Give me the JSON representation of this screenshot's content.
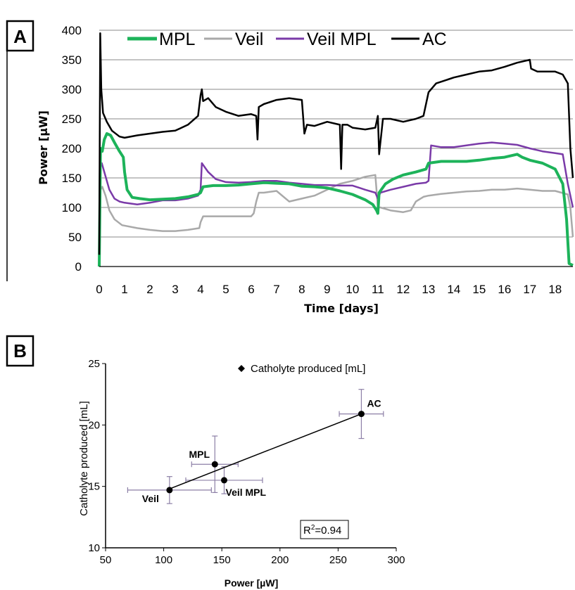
{
  "chart_data": [
    {
      "panel": "A",
      "type": "line",
      "xlabel": "Time [days]",
      "ylabel": "Power [µW]",
      "xlim": [
        0,
        18.7
      ],
      "ylim": [
        0,
        400
      ],
      "x_ticks": [
        "0",
        "1",
        "2",
        "3",
        "4",
        "5",
        "6",
        "7",
        "8",
        "9",
        "10",
        "11",
        "12",
        "13",
        "14",
        "15",
        "16",
        "17",
        "18"
      ],
      "y_ticks": [
        "0",
        "50",
        "100",
        "150",
        "200",
        "250",
        "300",
        "350",
        "400"
      ],
      "grid": "horizontal",
      "legend_position": "top",
      "series": [
        {
          "name": "MPL",
          "color": "#1db35a",
          "x": [
            0,
            0.05,
            0.12,
            0.2,
            0.3,
            0.45,
            0.6,
            0.8,
            0.95,
            1.0,
            1.1,
            1.3,
            1.6,
            2.0,
            2.5,
            3.0,
            3.5,
            3.9,
            4.0,
            4.1,
            4.5,
            5.0,
            5.5,
            6.0,
            6.5,
            7.0,
            7.5,
            8.0,
            8.5,
            9.0,
            9.5,
            10.0,
            10.5,
            10.8,
            10.95,
            11.0,
            11.05,
            11.3,
            11.6,
            12.0,
            12.5,
            12.9,
            13.0,
            13.5,
            14.0,
            14.5,
            15.0,
            15.5,
            16.0,
            16.5,
            16.7,
            17.0,
            17.5,
            18.0,
            18.3,
            18.45,
            18.55,
            18.7
          ],
          "y": [
            0,
            200,
            195,
            215,
            225,
            222,
            210,
            195,
            185,
            160,
            130,
            117,
            115,
            113,
            114,
            115,
            118,
            122,
            125,
            135,
            137,
            137,
            138,
            140,
            142,
            141,
            140,
            136,
            135,
            133,
            128,
            122,
            113,
            105,
            95,
            90,
            125,
            140,
            148,
            155,
            160,
            165,
            175,
            178,
            178,
            178,
            180,
            183,
            185,
            190,
            185,
            180,
            175,
            165,
            140,
            80,
            5,
            2
          ]
        },
        {
          "name": "Veil",
          "color": "#a9a9a9",
          "x": [
            0,
            0.05,
            0.12,
            0.25,
            0.4,
            0.6,
            0.9,
            1.5,
            2.0,
            2.5,
            3.0,
            3.5,
            3.95,
            4.0,
            4.1,
            4.5,
            5.0,
            5.5,
            6.0,
            6.1,
            6.2,
            6.3,
            6.5,
            7.0,
            7.5,
            8.0,
            8.5,
            9.0,
            9.5,
            10.0,
            10.5,
            10.9,
            11.0,
            11.1,
            11.5,
            12.0,
            12.3,
            12.5,
            12.8,
            13.0,
            13.5,
            14.0,
            14.5,
            15.0,
            15.5,
            16.0,
            16.5,
            17.0,
            17.5,
            18.0,
            18.5,
            18.6,
            18.7
          ],
          "y": [
            0,
            130,
            135,
            120,
            95,
            80,
            70,
            65,
            62,
            60,
            60,
            62,
            65,
            75,
            85,
            85,
            85,
            85,
            85,
            90,
            110,
            125,
            125,
            128,
            110,
            115,
            120,
            130,
            140,
            145,
            152,
            155,
            100,
            100,
            95,
            92,
            95,
            110,
            118,
            120,
            123,
            125,
            127,
            128,
            130,
            130,
            132,
            130,
            128,
            128,
            122,
            100,
            50
          ]
        },
        {
          "name": "Veil MPL",
          "color": "#7a3aa8",
          "x": [
            0,
            0.05,
            0.1,
            0.2,
            0.4,
            0.6,
            0.8,
            1.0,
            1.5,
            2.0,
            2.5,
            3.0,
            3.5,
            3.9,
            4.0,
            4.05,
            4.3,
            4.6,
            5.0,
            5.5,
            6.0,
            6.5,
            7.0,
            7.5,
            8.0,
            8.5,
            9.0,
            9.5,
            10.0,
            10.5,
            10.9,
            11.0,
            11.1,
            11.5,
            12.0,
            12.5,
            12.9,
            13.0,
            13.1,
            13.5,
            14.0,
            14.5,
            15.0,
            15.5,
            16.0,
            16.5,
            17.0,
            17.5,
            18.0,
            18.3,
            18.5,
            18.7
          ],
          "y": [
            0,
            170,
            175,
            160,
            130,
            115,
            110,
            108,
            105,
            108,
            112,
            112,
            115,
            120,
            130,
            175,
            160,
            148,
            143,
            142,
            143,
            145,
            145,
            142,
            140,
            138,
            138,
            137,
            137,
            130,
            125,
            115,
            125,
            130,
            135,
            140,
            142,
            145,
            205,
            202,
            202,
            205,
            208,
            210,
            208,
            206,
            200,
            195,
            192,
            190,
            140,
            100
          ]
        },
        {
          "name": "AC",
          "color": "#000000",
          "x": [
            0,
            0.04,
            0.08,
            0.15,
            0.3,
            0.5,
            0.8,
            1.0,
            1.5,
            2.0,
            2.5,
            3.0,
            3.5,
            3.9,
            4.0,
            4.05,
            4.1,
            4.3,
            4.6,
            5.0,
            5.5,
            6.0,
            6.2,
            6.25,
            6.3,
            6.5,
            7.0,
            7.5,
            8.0,
            8.1,
            8.2,
            8.5,
            9.0,
            9.5,
            9.55,
            9.6,
            9.8,
            10.0,
            10.5,
            10.9,
            11.0,
            11.05,
            11.2,
            11.5,
            12.0,
            12.5,
            12.8,
            13.0,
            13.3,
            14.0,
            14.5,
            15.0,
            15.5,
            16.0,
            16.5,
            17.0,
            17.05,
            17.3,
            17.8,
            18.0,
            18.3,
            18.5,
            18.6,
            18.7
          ],
          "y": [
            20,
            395,
            300,
            260,
            245,
            230,
            220,
            218,
            222,
            225,
            228,
            230,
            240,
            255,
            290,
            300,
            280,
            285,
            270,
            262,
            255,
            258,
            255,
            215,
            270,
            275,
            282,
            285,
            282,
            225,
            240,
            238,
            245,
            240,
            165,
            240,
            240,
            235,
            232,
            235,
            255,
            190,
            250,
            250,
            245,
            250,
            255,
            295,
            310,
            320,
            325,
            330,
            332,
            338,
            345,
            350,
            335,
            330,
            330,
            330,
            325,
            310,
            200,
            150
          ]
        }
      ]
    },
    {
      "panel": "B",
      "type": "scatter",
      "xlabel": "Power [µW]",
      "ylabel": "Catholyte produced [mL]",
      "xlim": [
        50,
        300
      ],
      "ylim": [
        10,
        25
      ],
      "x_ticks": [
        "50",
        "100",
        "150",
        "200",
        "250",
        "300"
      ],
      "y_ticks": [
        "10",
        "15",
        "20",
        "25"
      ],
      "legend": "Catholyte produced [mL]",
      "legend_position": "top",
      "annotation": "R²=0.94",
      "points": [
        {
          "label": "Veil",
          "x": 105,
          "y": 14.7,
          "xerr": 36,
          "yerr": 1.1
        },
        {
          "label": "MPL",
          "x": 144,
          "y": 16.8,
          "xerr": 20,
          "yerr": 2.3
        },
        {
          "label": "Veil MPL",
          "x": 152,
          "y": 15.5,
          "xerr": 33,
          "yerr": 1.1
        },
        {
          "label": "AC",
          "x": 270,
          "y": 20.9,
          "xerr": 19,
          "yerr": 2.0
        }
      ],
      "trendline": {
        "x": [
          105,
          270
        ],
        "y": [
          14.8,
          20.9
        ]
      },
      "errorbar_color": "#8c7fa6"
    }
  ],
  "panels": {
    "a_label": "A",
    "b_label": "B"
  },
  "legendA": {
    "mpl": "MPL",
    "veil": "Veil",
    "veil_mpl": "Veil MPL",
    "ac": "AC"
  },
  "axisA": {
    "xlabel": "Time [days]",
    "ylabel": "Power [µW]"
  },
  "axisB": {
    "xlabel": "Power [µW]",
    "ylabel": "Catholyte produced [mL]",
    "legend": "Catholyte produced [mL]",
    "r2_prefix": "R",
    "r2_sup": "2",
    "r2_value": "=0.94"
  }
}
